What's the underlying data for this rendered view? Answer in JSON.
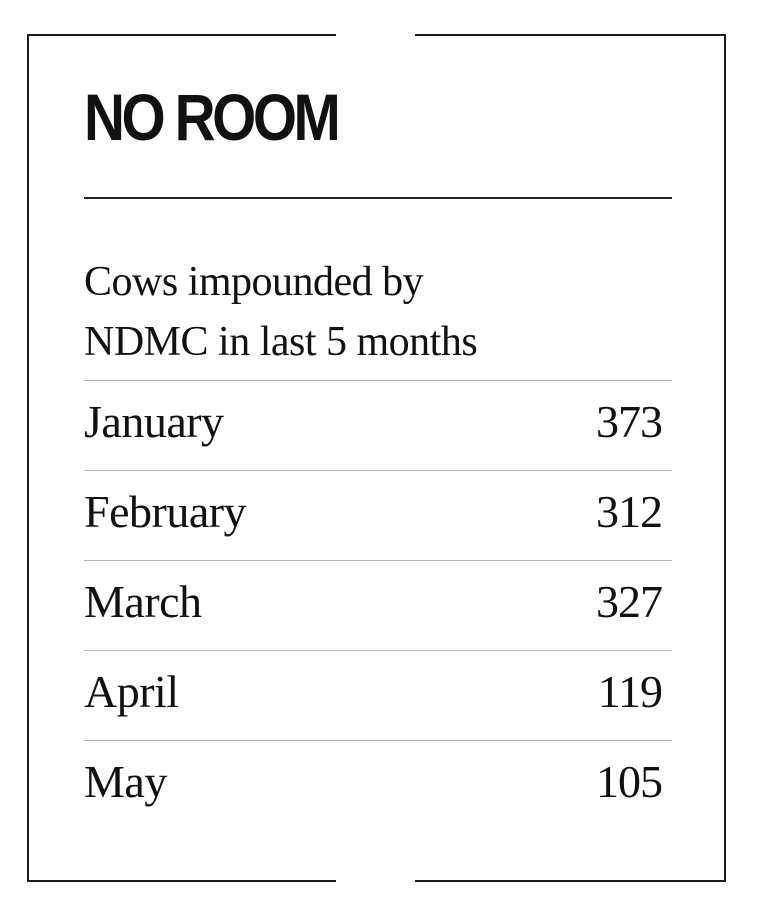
{
  "title": "NO ROOM",
  "subtitle": "Cows impounded by\nNDMC in last 5 months",
  "chart_data": {
    "type": "table",
    "title": "NO ROOM",
    "subtitle": "Cows impounded by NDMC in last 5 months",
    "categories": [
      "January",
      "February",
      "March",
      "April",
      "May"
    ],
    "values": [
      373,
      312,
      327,
      119,
      105
    ]
  },
  "rows": [
    {
      "label": "January",
      "value": "373"
    },
    {
      "label": "February",
      "value": "312"
    },
    {
      "label": "March",
      "value": "327"
    },
    {
      "label": "April",
      "value": "119"
    },
    {
      "label": "May",
      "value": "105"
    }
  ]
}
